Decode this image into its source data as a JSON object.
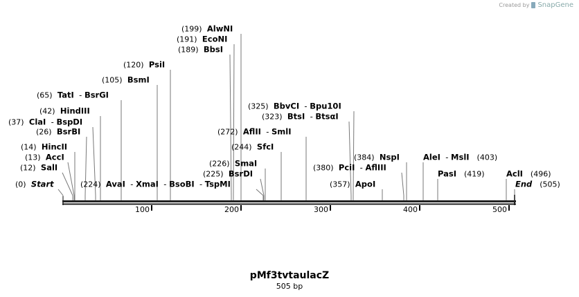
{
  "brand": {
    "created_by": "Created by",
    "name": "SnapGene"
  },
  "map": {
    "name": "pMf3tvtaulacZ",
    "length_label": "505 bp",
    "length": 505,
    "ticks": [
      "100",
      "200",
      "300",
      "400",
      "500"
    ]
  },
  "sites": [
    {
      "pos": "(0)",
      "names": [
        "Start"
      ],
      "italic": true
    },
    {
      "pos": "(12)",
      "names": [
        "SalI"
      ]
    },
    {
      "pos": "(13)",
      "names": [
        "AccI"
      ]
    },
    {
      "pos": "(14)",
      "names": [
        "HincII"
      ]
    },
    {
      "pos": "(26)",
      "names": [
        "BsrBI"
      ]
    },
    {
      "pos": "(37)",
      "names": [
        "ClaI",
        "BspDI"
      ]
    },
    {
      "pos": "(42)",
      "names": [
        "HindIII"
      ]
    },
    {
      "pos": "(65)",
      "names": [
        "TatI",
        "BsrGI"
      ]
    },
    {
      "pos": "(105)",
      "names": [
        "BsmI"
      ]
    },
    {
      "pos": "(120)",
      "names": [
        "PsiI"
      ]
    },
    {
      "pos": "(189)",
      "names": [
        "BbsI"
      ]
    },
    {
      "pos": "(191)",
      "names": [
        "EcoNI"
      ]
    },
    {
      "pos": "(199)",
      "names": [
        "AlwNI"
      ]
    },
    {
      "pos": "(224)",
      "names": [
        "AvaI",
        "XmaI",
        "BsoBI",
        "TspMI"
      ]
    },
    {
      "pos": "(225)",
      "names": [
        "BsrDI"
      ]
    },
    {
      "pos": "(226)",
      "names": [
        "SmaI"
      ]
    },
    {
      "pos": "(244)",
      "names": [
        "SfcI"
      ]
    },
    {
      "pos": "(272)",
      "names": [
        "AflII",
        "SmlI"
      ]
    },
    {
      "pos": "(323)",
      "names": [
        "BtsI",
        "BtsαI"
      ]
    },
    {
      "pos": "(325)",
      "names": [
        "BbvCI",
        "Bpu10I"
      ]
    },
    {
      "pos": "(357)",
      "names": [
        "ApoI"
      ]
    },
    {
      "pos": "(380)",
      "names": [
        "PciI",
        "AflIII"
      ]
    },
    {
      "pos": "(384)",
      "names": [
        "NspI"
      ]
    },
    {
      "pos": "(403)",
      "names": [
        "AleI",
        "MslI"
      ],
      "num_right": true
    },
    {
      "pos": "(419)",
      "names": [
        "PasI"
      ],
      "num_right": true
    },
    {
      "pos": "(496)",
      "names": [
        "AclI"
      ],
      "num_right": true
    },
    {
      "pos": "(505)",
      "names": [
        "End"
      ],
      "italic": true,
      "num_right": true
    }
  ]
}
